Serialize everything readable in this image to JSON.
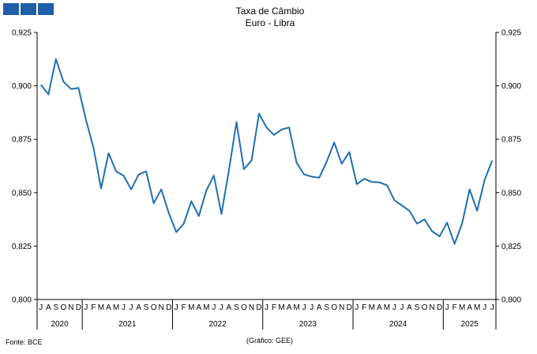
{
  "logo": {
    "name": "gee-logo",
    "colors": [
      "#1f5fa9"
    ]
  },
  "source": "Fonte: BCE",
  "credit": "(Gráfico: GEE)",
  "chart_data": {
    "type": "line",
    "title": "Taxa de Câmbio",
    "subtitle": "Euro - Libra",
    "xlabel": "",
    "ylabel": "",
    "ylim": [
      0.8,
      0.925
    ],
    "yticks": [
      "0,800",
      "0,825",
      "0,850",
      "0,875",
      "0,900",
      "0,925"
    ],
    "secondary_axis": true,
    "grid": false,
    "line_color": "#1f6fb2",
    "month_labels": [
      "J",
      "A",
      "S",
      "O",
      "N",
      "D",
      "J",
      "F",
      "M",
      "A",
      "M",
      "J",
      "J",
      "A",
      "S",
      "O",
      "N",
      "D",
      "J",
      "F",
      "M",
      "A",
      "M",
      "J",
      "J",
      "A",
      "S",
      "O",
      "N",
      "D",
      "J",
      "F",
      "M",
      "A",
      "M",
      "J",
      "J",
      "A",
      "S",
      "O",
      "N",
      "D",
      "J",
      "F",
      "M",
      "A",
      "M",
      "J",
      "J",
      "A",
      "S",
      "O",
      "N",
      "D",
      "J",
      "F",
      "M",
      "A",
      "M",
      "J",
      "J"
    ],
    "years": [
      {
        "label": "2020",
        "months": 6
      },
      {
        "label": "2021",
        "months": 12
      },
      {
        "label": "2022",
        "months": 12
      },
      {
        "label": "2023",
        "months": 12
      },
      {
        "label": "2024",
        "months": 12
      },
      {
        "label": "2025",
        "months": 7
      }
    ],
    "x_start": "2020-07",
    "x_end": "2025-07",
    "series": [
      {
        "values": [
          0.9005,
          0.896,
          0.9125,
          0.902,
          0.8985,
          0.899,
          0.884,
          0.871,
          0.852,
          0.8685,
          0.86,
          0.858,
          0.8515,
          0.8585,
          0.86,
          0.845,
          0.8515,
          0.8405,
          0.8315,
          0.8355,
          0.846,
          0.839,
          0.851,
          0.858,
          0.84,
          0.8605,
          0.883,
          0.861,
          0.865,
          0.887,
          0.8805,
          0.877,
          0.8795,
          0.8805,
          0.864,
          0.8585,
          0.8575,
          0.857,
          0.8645,
          0.8735,
          0.8635,
          0.869,
          0.854,
          0.8565,
          0.855,
          0.8548,
          0.8535,
          0.8465,
          0.844,
          0.8415,
          0.8355,
          0.8375,
          0.832,
          0.8295,
          0.836,
          0.826,
          0.8355,
          0.8515,
          0.8415,
          0.856,
          0.865
        ]
      }
    ]
  }
}
